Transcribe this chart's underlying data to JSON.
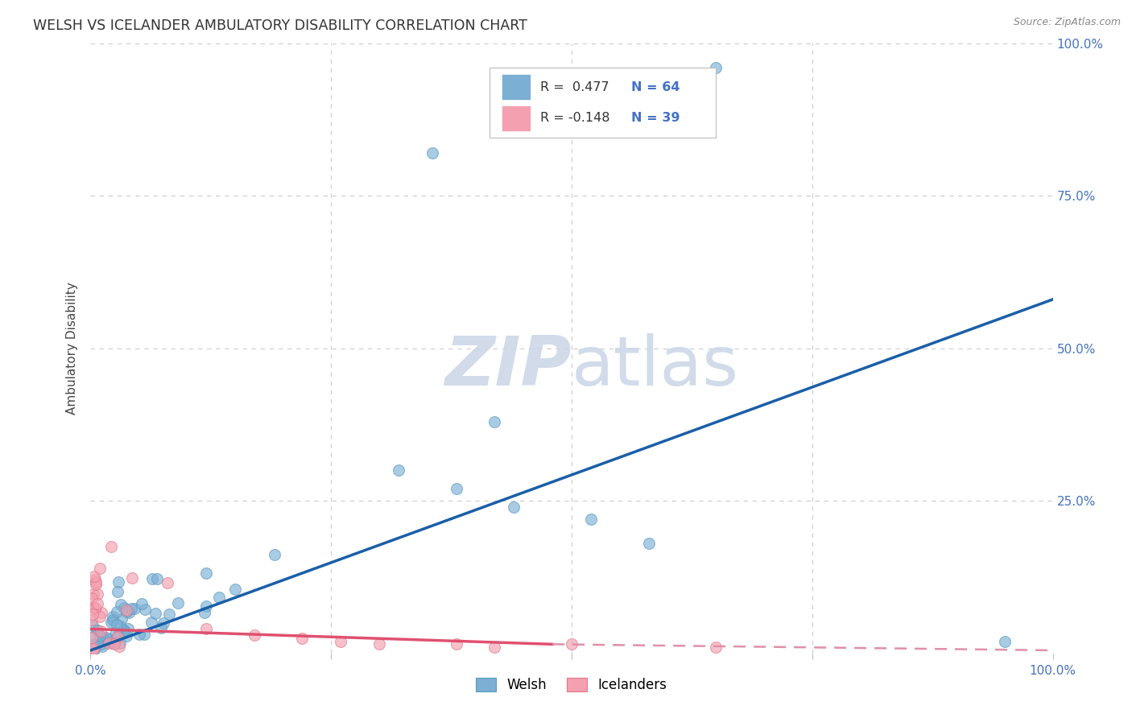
{
  "title": "WELSH VS ICELANDER AMBULATORY DISABILITY CORRELATION CHART",
  "source": "Source: ZipAtlas.com",
  "ylabel": "Ambulatory Disability",
  "xlabel": "",
  "xlim": [
    0.0,
    1.0
  ],
  "ylim": [
    0.0,
    1.0
  ],
  "welsh_color": "#7bafd4",
  "welsh_edge_color": "#5a9ac0",
  "icelander_color": "#f4a0b0",
  "icelander_edge_color": "#e07888",
  "welsh_line_color": "#1a5fa8",
  "icelander_line_color": "#e05070",
  "icelander_dashed_color": "#e090a8",
  "background_color": "#ffffff",
  "grid_color": "#cccccc",
  "watermark_color": "#ccd8e8",
  "legend_R_welsh": "R =  0.477",
  "legend_N_welsh": "N = 64",
  "legend_R_icelander": "R = -0.148",
  "legend_N_icelander": "N = 39",
  "title_color": "#333333",
  "ylabel_color": "#444444",
  "tick_color": "#4472c4",
  "source_color": "#888888"
}
